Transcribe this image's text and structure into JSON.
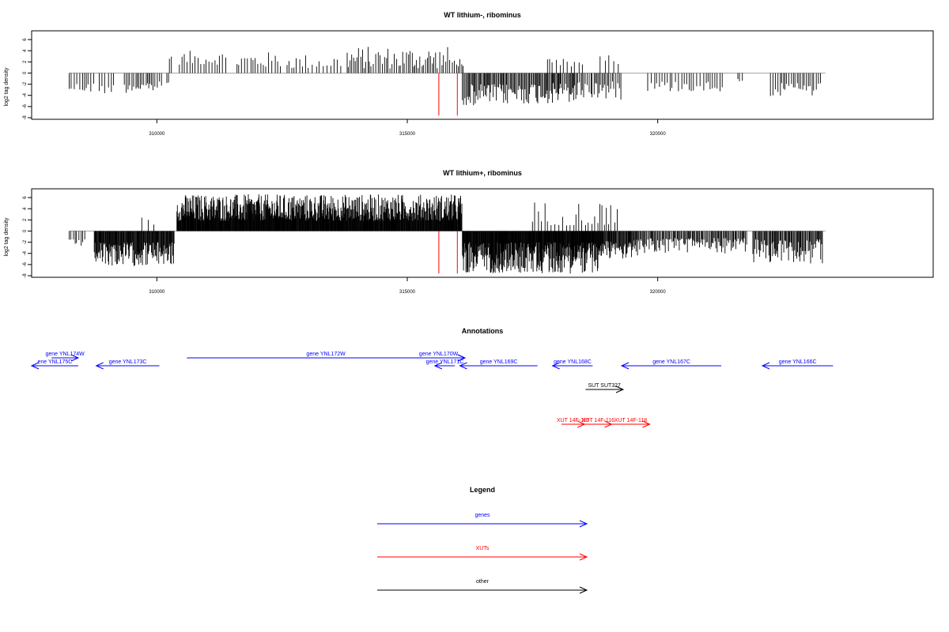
{
  "chart_data": [
    {
      "type": "bar",
      "title": "WT lithium-, ribominus",
      "xlabel": "",
      "ylabel": "log2 tag density",
      "xlim": [
        307500,
        325500
      ],
      "ylim": [
        -8,
        7
      ],
      "x_ticks": [
        310000,
        315000,
        320000
      ],
      "x_tick_labels": [
        "310000",
        "315000",
        "320000"
      ],
      "y_ticks": [
        -8,
        -6,
        -4,
        -2,
        0,
        2,
        4,
        6
      ],
      "y_tick_labels": [
        "-8",
        "-6",
        "-4",
        "-2",
        "0",
        "2",
        "4",
        "6"
      ],
      "baseline": {
        "from": 308250,
        "to": 323350,
        "y": 0
      },
      "series": [
        {
          "color": "#000000",
          "segments": [
            {
              "from": 308250,
              "to": 308750,
              "step": 45,
              "amp": [
                1.8,
                3.6
              ],
              "sign": -1
            },
            {
              "from": 308850,
              "to": 309150,
              "step": 60,
              "amp": [
                2.0,
                3.8
              ],
              "sign": -1
            },
            {
              "from": 309350,
              "to": 310100,
              "step": 38,
              "amp": [
                1.5,
                3.6
              ],
              "sign": -1
            },
            {
              "from": 310200,
              "to": 310250,
              "step": 40,
              "amp": [
                1.5,
                2.0
              ],
              "sign": -1
            },
            {
              "from": 310250,
              "to": 310300,
              "step": 40,
              "amp": [
                2.5,
                3.0
              ],
              "sign": 1
            },
            {
              "from": 310450,
              "to": 311400,
              "step": 48,
              "amp": [
                1.5,
                4.0
              ],
              "sign": 1
            },
            {
              "from": 311600,
              "to": 312500,
              "step": 55,
              "amp": [
                1.0,
                3.8
              ],
              "sign": 1
            },
            {
              "from": 312600,
              "to": 313700,
              "step": 62,
              "amp": [
                0.8,
                3.4
              ],
              "sign": 1
            },
            {
              "from": 313800,
              "to": 315850,
              "step": 36,
              "amp": [
                0.8,
                4.8
              ],
              "sign": 1
            },
            {
              "from": 315900,
              "to": 316150,
              "step": 40,
              "amp": [
                1.2,
                2.8
              ],
              "sign": 1
            },
            {
              "from": 316100,
              "to": 317300,
              "step": 22,
              "amp": [
                2.0,
                5.8
              ],
              "sign": -1
            },
            {
              "from": 317300,
              "to": 318400,
              "step": 22,
              "amp": [
                1.8,
                5.6
              ],
              "sign": -1
            },
            {
              "from": 318400,
              "to": 319300,
              "step": 30,
              "amp": [
                1.5,
                4.8
              ],
              "sign": -1
            },
            {
              "from": 317800,
              "to": 318500,
              "step": 70,
              "amp": [
                1.0,
                2.6
              ],
              "sign": 1
            },
            {
              "from": 318850,
              "to": 319300,
              "step": 90,
              "amp": [
                1.5,
                3.2
              ],
              "sign": 1
            },
            {
              "from": 319800,
              "to": 321300,
              "step": 55,
              "amp": [
                1.5,
                3.4
              ],
              "sign": -1
            },
            {
              "from": 321600,
              "to": 321700,
              "step": 50,
              "amp": [
                1.0,
                1.5
              ],
              "sign": -1
            },
            {
              "from": 322250,
              "to": 323300,
              "step": 40,
              "amp": [
                1.8,
                4.4
              ],
              "sign": -1
            }
          ]
        },
        {
          "color": "#ff0000",
          "bars": [
            {
              "x": 315630,
              "y": -7.6
            },
            {
              "x": 316000,
              "y": -7.6
            }
          ]
        }
      ]
    },
    {
      "type": "bar",
      "title": "WT lithium+, ribominus",
      "xlabel": "",
      "ylabel": "log2 tag density",
      "xlim": [
        307500,
        325500
      ],
      "ylim": [
        -8,
        7
      ],
      "x_ticks": [
        310000,
        315000,
        320000
      ],
      "x_tick_labels": [
        "310000",
        "315000",
        "320000"
      ],
      "y_ticks": [
        -8,
        -6,
        -4,
        -2,
        0,
        2,
        4,
        6
      ],
      "y_tick_labels": [
        "-8",
        "-6",
        "-4",
        "-2",
        "0",
        "2",
        "4",
        "6"
      ],
      "baseline": {
        "from": 308250,
        "to": 323350,
        "y": 0
      },
      "series": [
        {
          "color": "#000000",
          "segments": [
            {
              "from": 308250,
              "to": 308600,
              "step": 40,
              "amp": [
                1.5,
                2.8
              ],
              "sign": -1
            },
            {
              "from": 308750,
              "to": 310350,
              "step": 12,
              "amp": [
                2.0,
                6.3
              ],
              "sign": -1
            },
            {
              "from": 309700,
              "to": 310000,
              "step": 120,
              "amp": [
                1.0,
                2.6
              ],
              "sign": 1
            },
            {
              "from": 310400,
              "to": 316100,
              "step": 9,
              "amp": [
                1.8,
                6.6
              ],
              "sign": 1
            },
            {
              "from": 316100,
              "to": 318900,
              "step": 9,
              "amp": [
                2.0,
                7.6
              ],
              "sign": -1
            },
            {
              "from": 318900,
              "to": 319600,
              "step": 14,
              "amp": [
                1.5,
                5.0
              ],
              "sign": -1
            },
            {
              "from": 317500,
              "to": 319200,
              "step": 60,
              "amp": [
                1.0,
                5.4
              ],
              "sign": 1
            },
            {
              "from": 319600,
              "to": 321800,
              "step": 20,
              "amp": [
                1.2,
                4.0
              ],
              "sign": -1
            },
            {
              "from": 321900,
              "to": 323300,
              "step": 18,
              "amp": [
                1.5,
                5.8
              ],
              "sign": -1
            }
          ]
        },
        {
          "color": "#ff0000",
          "bars": [
            {
              "x": 315630,
              "y": -7.6
            },
            {
              "x": 316000,
              "y": -7.6
            }
          ]
        }
      ]
    }
  ],
  "annotations": {
    "title": "Annotations",
    "xlim": [
      307500,
      325500
    ],
    "features": [
      {
        "label": "gene YNL174W",
        "type": "gene",
        "start": 307900,
        "end": 308430,
        "strand": "+",
        "row": 1
      },
      {
        "label": "ene YNL175C",
        "type": "gene",
        "start": 307500,
        "end": 308430,
        "strand": "-",
        "row": 2
      },
      {
        "label": "gene YNL173C",
        "type": "gene",
        "start": 308790,
        "end": 310050,
        "strand": "-",
        "row": 2
      },
      {
        "label": "gene YNL172W",
        "type": "gene",
        "start": 310600,
        "end": 316150,
        "strand": "+",
        "row": 1
      },
      {
        "label": "gene YNL170W",
        "type": "gene",
        "start": 315100,
        "end": 316150,
        "strand": "+",
        "row": 1
      },
      {
        "label": "gene YNL171C",
        "type": "gene",
        "start": 315550,
        "end": 315950,
        "strand": "-",
        "row": 2
      },
      {
        "label": "gene YNL169C",
        "type": "gene",
        "start": 316050,
        "end": 317600,
        "strand": "-",
        "row": 2
      },
      {
        "label": "gene YNL168C",
        "type": "gene",
        "start": 317900,
        "end": 318700,
        "strand": "-",
        "row": 2
      },
      {
        "label": "gene YNL167C",
        "type": "gene",
        "start": 319280,
        "end": 321270,
        "strand": "-",
        "row": 2
      },
      {
        "label": "gene YNL166C",
        "type": "gene",
        "start": 322090,
        "end": 323500,
        "strand": "-",
        "row": 2
      },
      {
        "label": "SUT SUT327",
        "type": "other",
        "start": 318560,
        "end": 319310,
        "strand": "+",
        "row": 3
      },
      {
        "label": "XUT 14F-115",
        "type": "xut",
        "start": 318080,
        "end": 318540,
        "strand": "+",
        "row": 4
      },
      {
        "label": "XUT 14F-116",
        "type": "xut",
        "start": 318540,
        "end": 319080,
        "strand": "+",
        "row": 4
      },
      {
        "label": "XUT 14F-118",
        "type": "xut",
        "start": 319080,
        "end": 319840,
        "strand": "+",
        "row": 4
      }
    ]
  },
  "legend": {
    "title": "Legend",
    "items": [
      {
        "label": "genes",
        "color": "#0000ff"
      },
      {
        "label": "XUTs",
        "color": "#ff0000"
      },
      {
        "label": "other",
        "color": "#000000"
      }
    ]
  }
}
